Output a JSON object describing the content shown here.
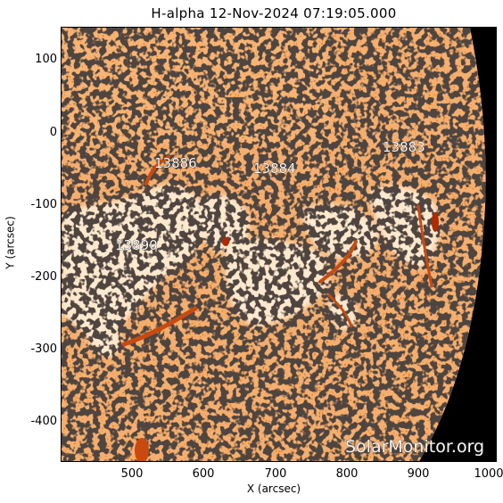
{
  "title": "H-alpha 12-Nov-2024 07:19:05.000",
  "axes": {
    "xlabel": "X (arcsec)",
    "ylabel": "Y (arcsec)",
    "xticks": [
      "500",
      "600",
      "700",
      "800",
      "900",
      "1000"
    ],
    "yticks": [
      "100",
      "0",
      "-100",
      "-200",
      "-300",
      "-400"
    ]
  },
  "regions": [
    {
      "id": "13886",
      "label": "13886"
    },
    {
      "id": "13884",
      "label": "13884"
    },
    {
      "id": "13883",
      "label": "13883"
    },
    {
      "id": "13890",
      "label": "13890"
    }
  ],
  "watermark": "SolarMonitor.org",
  "colors": {
    "disk": "#e8781e",
    "dark_spots": "#1a1a1a",
    "bright_plage": "#fff6ec",
    "filament": "#c84a10",
    "space": "#000000"
  }
}
